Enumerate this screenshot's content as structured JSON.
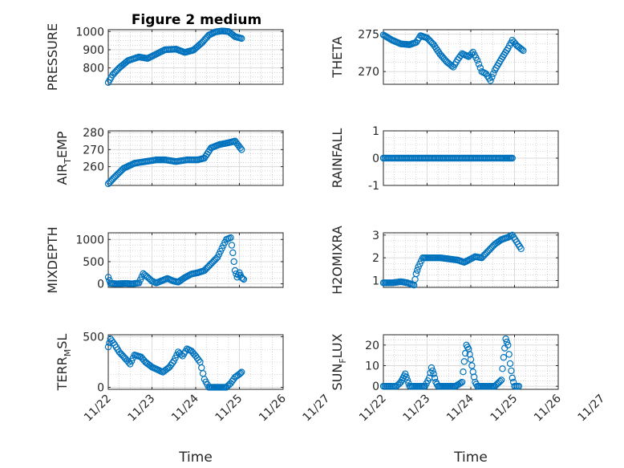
{
  "figure": {
    "title": "Figure 2 medium",
    "xlabel": "Time"
  },
  "colors": {
    "marker": "#0072BD",
    "grid": "#b8b8b8",
    "axis": "#262626"
  },
  "chart_data": [
    {
      "id": "pressure",
      "type": "scatter",
      "ylabel": "PRESSURE",
      "ylim": [
        710,
        1010
      ],
      "yticks": [
        800,
        900,
        1000
      ],
      "xlim": [
        0,
        4
      ],
      "xticks": [],
      "series": [
        {
          "name": "PRESSURE",
          "points": [
            [
              0,
              720
            ],
            [
              0.1,
              762
            ],
            [
              0.25,
              800
            ],
            [
              0.45,
              840
            ],
            [
              0.7,
              860
            ],
            [
              0.9,
              852
            ],
            [
              1.05,
              870
            ],
            [
              1.3,
              900
            ],
            [
              1.55,
              903
            ],
            [
              1.75,
              885
            ],
            [
              1.95,
              898
            ],
            [
              2.15,
              940
            ],
            [
              2.3,
              980
            ],
            [
              2.45,
              998
            ],
            [
              2.6,
              1003
            ],
            [
              2.75,
              1000
            ],
            [
              2.9,
              972
            ],
            [
              3.05,
              962
            ]
          ]
        }
      ]
    },
    {
      "id": "theta",
      "type": "scatter",
      "ylabel": "THETA",
      "ylim": [
        268.3,
        275.6
      ],
      "yticks": [
        270,
        275
      ],
      "xlim": [
        0,
        4
      ],
      "xticks": [],
      "series": [
        {
          "name": "THETA",
          "points": [
            [
              0,
              274.9
            ],
            [
              0.2,
              274.2
            ],
            [
              0.4,
              273.7
            ],
            [
              0.6,
              273.6
            ],
            [
              0.75,
              273.9
            ],
            [
              0.85,
              274.8
            ],
            [
              1.0,
              274.5
            ],
            [
              1.15,
              273.6
            ],
            [
              1.3,
              272.3
            ],
            [
              1.45,
              271.3
            ],
            [
              1.6,
              270.6
            ],
            [
              1.7,
              271.6
            ],
            [
              1.8,
              272.4
            ],
            [
              1.95,
              272.0
            ],
            [
              2.05,
              272.6
            ],
            [
              2.15,
              271.5
            ],
            [
              2.25,
              270.0
            ],
            [
              2.35,
              269.7
            ],
            [
              2.45,
              268.8
            ],
            [
              2.55,
              270.2
            ],
            [
              2.7,
              271.7
            ],
            [
              2.85,
              273.1
            ],
            [
              2.95,
              274.2
            ],
            [
              3.05,
              273.5
            ],
            [
              3.2,
              272.8
            ]
          ]
        }
      ]
    },
    {
      "id": "air_temp",
      "type": "scatter",
      "ylabel": "AIR_TEMP",
      "ylim": [
        249,
        281
      ],
      "yticks": [
        260,
        270,
        280
      ],
      "xlim": [
        0,
        4
      ],
      "xticks": [],
      "series": [
        {
          "name": "AIR_TEMP",
          "points": [
            [
              0,
              250
            ],
            [
              0.15,
              254
            ],
            [
              0.35,
              259
            ],
            [
              0.6,
              262
            ],
            [
              0.85,
              263
            ],
            [
              1.1,
              264
            ],
            [
              1.3,
              264
            ],
            [
              1.55,
              263
            ],
            [
              1.8,
              264
            ],
            [
              2.05,
              264
            ],
            [
              2.2,
              265
            ],
            [
              2.35,
              271
            ],
            [
              2.55,
              273
            ],
            [
              2.75,
              274
            ],
            [
              2.9,
              275
            ],
            [
              3.05,
              270
            ]
          ]
        }
      ]
    },
    {
      "id": "rainfall",
      "type": "scatter",
      "ylabel": "RAINFALL",
      "ylim": [
        -1,
        1
      ],
      "yticks": [
        -1,
        0,
        1
      ],
      "xlim": [
        0,
        4
      ],
      "xticks": [],
      "series": [
        {
          "name": "RAINFALL",
          "points": [
            [
              0,
              0
            ],
            [
              0.25,
              0
            ],
            [
              0.5,
              0
            ],
            [
              0.75,
              0
            ],
            [
              1.0,
              0
            ],
            [
              1.25,
              0
            ],
            [
              1.5,
              0
            ],
            [
              1.75,
              0
            ],
            [
              2.0,
              0
            ],
            [
              2.25,
              0
            ],
            [
              2.5,
              0
            ],
            [
              2.75,
              0
            ],
            [
              2.95,
              0
            ]
          ]
        }
      ]
    },
    {
      "id": "mixdepth",
      "type": "scatter",
      "ylabel": "MIXDEPTH",
      "ylim": [
        -80,
        1150
      ],
      "yticks": [
        0,
        500,
        1000
      ],
      "xlim": [
        0,
        4
      ],
      "xticks": [],
      "series": [
        {
          "name": "MIXDEPTH",
          "points": [
            [
              0,
              150
            ],
            [
              0.05,
              10
            ],
            [
              0.2,
              0
            ],
            [
              0.4,
              10
            ],
            [
              0.55,
              0
            ],
            [
              0.7,
              20
            ],
            [
              0.8,
              230
            ],
            [
              0.9,
              150
            ],
            [
              1.0,
              60
            ],
            [
              1.1,
              20
            ],
            [
              1.2,
              60
            ],
            [
              1.35,
              120
            ],
            [
              1.5,
              60
            ],
            [
              1.6,
              40
            ],
            [
              1.75,
              140
            ],
            [
              1.9,
              220
            ],
            [
              2.05,
              250
            ],
            [
              2.2,
              300
            ],
            [
              2.35,
              450
            ],
            [
              2.5,
              600
            ],
            [
              2.6,
              800
            ],
            [
              2.7,
              1000
            ],
            [
              2.8,
              1040
            ],
            [
              2.85,
              700
            ],
            [
              2.9,
              300
            ],
            [
              2.95,
              150
            ],
            [
              3.0,
              250
            ],
            [
              3.05,
              140
            ],
            [
              3.1,
              100
            ]
          ]
        }
      ]
    },
    {
      "id": "h2omixra",
      "type": "scatter",
      "ylabel": "H2OMIXRA",
      "ylim": [
        0.7,
        3.1
      ],
      "yticks": [
        1,
        2,
        3
      ],
      "xlim": [
        0,
        4
      ],
      "xticks": [],
      "series": [
        {
          "name": "H2OMIXRA",
          "points": [
            [
              0,
              0.9
            ],
            [
              0.2,
              0.9
            ],
            [
              0.4,
              0.95
            ],
            [
              0.55,
              0.9
            ],
            [
              0.7,
              0.8
            ],
            [
              0.75,
              1.3
            ],
            [
              0.8,
              1.6
            ],
            [
              0.9,
              2.0
            ],
            [
              1.1,
              2.0
            ],
            [
              1.3,
              2.0
            ],
            [
              1.5,
              1.95
            ],
            [
              1.7,
              1.9
            ],
            [
              1.85,
              1.8
            ],
            [
              2.0,
              1.95
            ],
            [
              2.1,
              2.05
            ],
            [
              2.25,
              2.0
            ],
            [
              2.4,
              2.3
            ],
            [
              2.55,
              2.6
            ],
            [
              2.7,
              2.8
            ],
            [
              2.85,
              2.9
            ],
            [
              2.95,
              3.0
            ],
            [
              3.05,
              2.7
            ],
            [
              3.15,
              2.4
            ]
          ]
        }
      ]
    },
    {
      "id": "terr_msl",
      "type": "scatter",
      "ylabel": "TERR_MSL",
      "ylim": [
        -20,
        520
      ],
      "yticks": [
        0,
        500
      ],
      "xlim": [
        0,
        4
      ],
      "xticks": [
        "11/22",
        "11/23",
        "11/24",
        "11/25",
        "11/26",
        "11/27"
      ],
      "xlabel": "Time",
      "series": [
        {
          "name": "TERR_MSL",
          "points": [
            [
              0,
              400
            ],
            [
              0.05,
              480
            ],
            [
              0.15,
              420
            ],
            [
              0.25,
              350
            ],
            [
              0.4,
              280
            ],
            [
              0.5,
              230
            ],
            [
              0.6,
              320
            ],
            [
              0.75,
              300
            ],
            [
              0.85,
              250
            ],
            [
              1.0,
              200
            ],
            [
              1.15,
              170
            ],
            [
              1.25,
              150
            ],
            [
              1.4,
              200
            ],
            [
              1.5,
              260
            ],
            [
              1.6,
              350
            ],
            [
              1.7,
              310
            ],
            [
              1.8,
              380
            ],
            [
              1.9,
              360
            ],
            [
              2.0,
              310
            ],
            [
              2.1,
              250
            ],
            [
              2.2,
              80
            ],
            [
              2.3,
              0
            ],
            [
              2.5,
              0
            ],
            [
              2.7,
              0
            ],
            [
              2.8,
              40
            ],
            [
              2.9,
              100
            ],
            [
              3.0,
              130
            ],
            [
              3.05,
              150
            ]
          ]
        }
      ]
    },
    {
      "id": "sun_flux",
      "type": "scatter",
      "ylabel": "SUN_FLUX",
      "ylim": [
        -1.5,
        25
      ],
      "yticks": [
        0,
        10,
        20
      ],
      "xlim": [
        0,
        4
      ],
      "xticks": [
        "11/22",
        "11/23",
        "11/24",
        "11/25",
        "11/26",
        "11/27"
      ],
      "xlabel": "Time",
      "series": [
        {
          "name": "SUN_FLUX",
          "points": [
            [
              0,
              0
            ],
            [
              0.15,
              0
            ],
            [
              0.3,
              0
            ],
            [
              0.4,
              2
            ],
            [
              0.45,
              4
            ],
            [
              0.5,
              6
            ],
            [
              0.55,
              3
            ],
            [
              0.6,
              0
            ],
            [
              0.75,
              0
            ],
            [
              0.95,
              0
            ],
            [
              1.05,
              4
            ],
            [
              1.1,
              9
            ],
            [
              1.15,
              6
            ],
            [
              1.2,
              2
            ],
            [
              1.25,
              0
            ],
            [
              1.45,
              0
            ],
            [
              1.65,
              0
            ],
            [
              1.8,
              2
            ],
            [
              1.85,
              12
            ],
            [
              1.9,
              20
            ],
            [
              1.95,
              18
            ],
            [
              2.0,
              13
            ],
            [
              2.05,
              7
            ],
            [
              2.1,
              2
            ],
            [
              2.15,
              0
            ],
            [
              2.35,
              0
            ],
            [
              2.55,
              0
            ],
            [
              2.7,
              3
            ],
            [
              2.75,
              14
            ],
            [
              2.8,
              23
            ],
            [
              2.85,
              20
            ],
            [
              2.9,
              11
            ],
            [
              2.95,
              4
            ],
            [
              3.0,
              0
            ],
            [
              3.1,
              0
            ]
          ]
        }
      ]
    }
  ]
}
